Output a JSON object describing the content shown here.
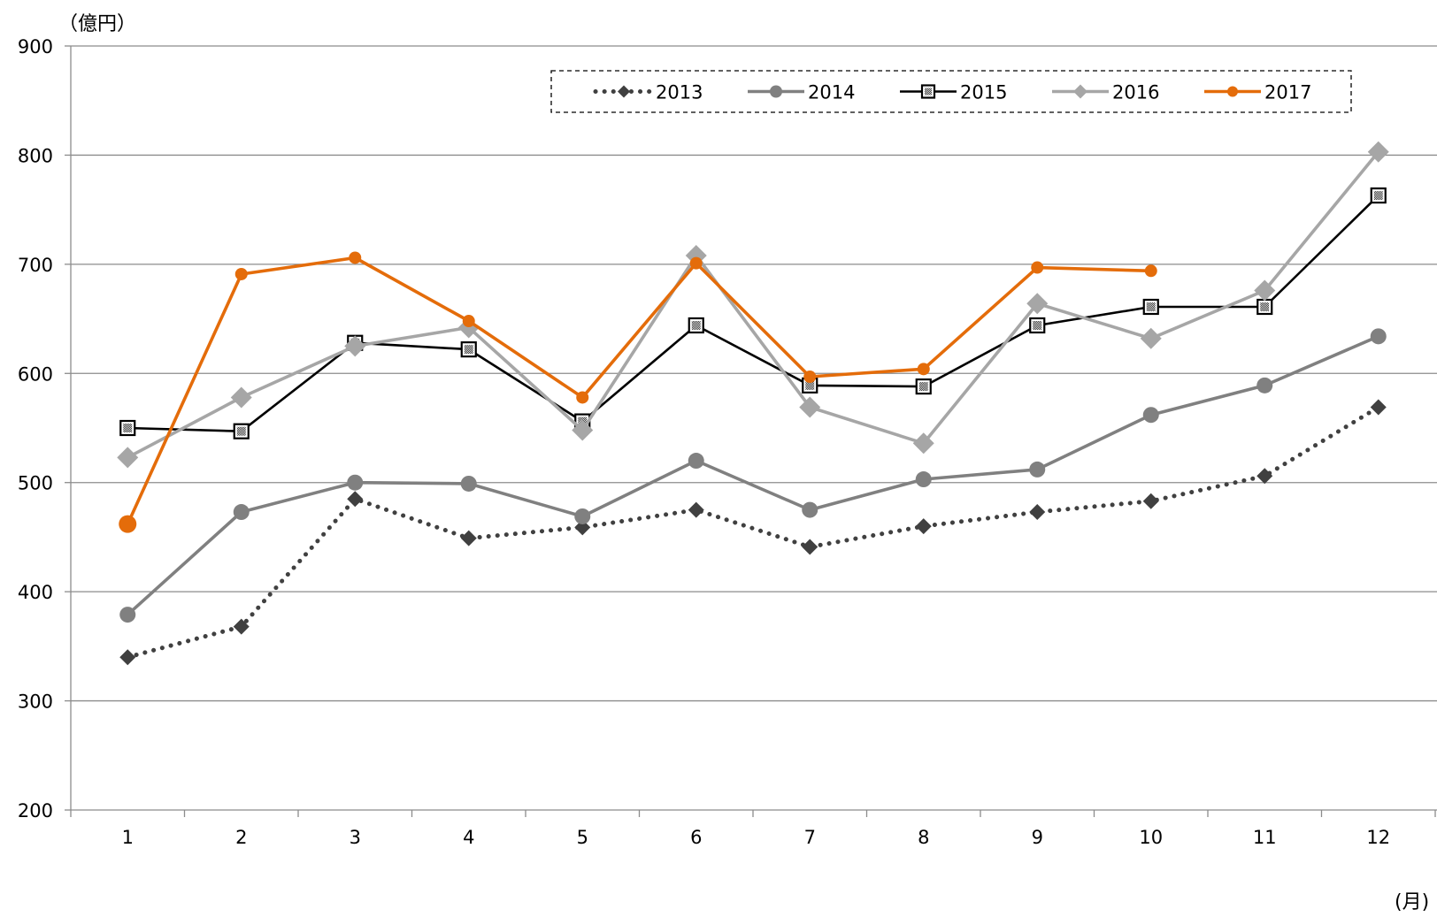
{
  "chart_data": {
    "type": "line",
    "title": "",
    "ylabel": "（億円）",
    "xlabel": "(月)",
    "ylim": [
      200,
      900
    ],
    "yticks": [
      200,
      300,
      400,
      500,
      600,
      700,
      800,
      900
    ],
    "categories": [
      "1",
      "2",
      "3",
      "4",
      "5",
      "6",
      "7",
      "8",
      "9",
      "10",
      "11",
      "12"
    ],
    "grid": true,
    "legend_position": "top-right",
    "series": [
      {
        "name": "2013",
        "color": "#404040",
        "line_style": "dotted",
        "marker": "diamond",
        "values": [
          340,
          368,
          485,
          449,
          459,
          475,
          441,
          460,
          473,
          483,
          506,
          569
        ]
      },
      {
        "name": "2014",
        "color": "#808080",
        "line_style": "solid",
        "marker": "circle",
        "values": [
          379,
          473,
          500,
          499,
          469,
          520,
          475,
          503,
          512,
          562,
          589,
          634
        ]
      },
      {
        "name": "2015",
        "color": "#000000",
        "line_style": "solid",
        "marker": "square",
        "values": [
          550,
          547,
          628,
          622,
          556,
          644,
          589,
          588,
          644,
          661,
          661,
          763
        ]
      },
      {
        "name": "2016",
        "color": "#a6a6a6",
        "line_style": "solid",
        "marker": "diamond",
        "values": [
          523,
          578,
          625,
          642,
          548,
          708,
          569,
          536,
          664,
          632,
          676,
          803
        ]
      },
      {
        "name": "2017",
        "color": "#e46c0a",
        "line_style": "solid",
        "marker": "circle",
        "values": [
          462,
          691,
          706,
          648,
          578,
          701,
          597,
          604,
          697,
          694,
          null,
          null
        ]
      }
    ]
  }
}
